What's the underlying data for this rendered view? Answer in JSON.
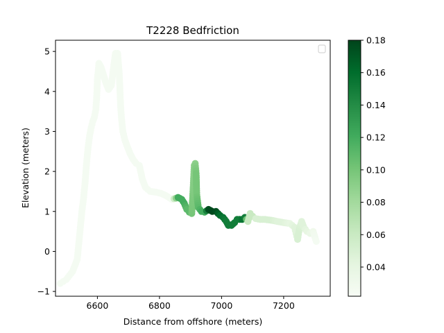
{
  "chart_data": {
    "type": "scatter",
    "title": "T2228 Bedfriction",
    "xlabel": "Distance from offshore (meters)",
    "ylabel": "Elevation (meters)",
    "xlim": [
      6465,
      7350
    ],
    "ylim": [
      -1.12,
      5.28
    ],
    "xticks": [
      6600,
      6800,
      7000,
      7200
    ],
    "yticks": [
      -1,
      0,
      1,
      2,
      3,
      4,
      5
    ],
    "grid": false,
    "legend": {
      "placement": "top-right",
      "entries": []
    },
    "colorbar": {
      "colormap": "Greens",
      "range": [
        0.022,
        0.18
      ],
      "ticks": [
        0.04,
        0.06,
        0.08,
        0.1,
        0.12,
        0.14,
        0.16,
        0.18
      ],
      "tick_labels": [
        "0.04",
        "0.06",
        "0.08",
        "0.10",
        "0.12",
        "0.14",
        "0.16",
        "0.18"
      ],
      "colors": {
        "low": "#f7fcf5",
        "mid": "#74c476",
        "high": "#00441b"
      }
    },
    "points": [
      {
        "x": 6480,
        "y": -0.8,
        "c": 0.025
      },
      {
        "x": 6490,
        "y": -0.75,
        "c": 0.025
      },
      {
        "x": 6500,
        "y": -0.7,
        "c": 0.025
      },
      {
        "x": 6510,
        "y": -0.6,
        "c": 0.025
      },
      {
        "x": 6520,
        "y": -0.5,
        "c": 0.025
      },
      {
        "x": 6530,
        "y": -0.3,
        "c": 0.025
      },
      {
        "x": 6535,
        "y": -0.2,
        "c": 0.025
      },
      {
        "x": 6540,
        "y": 0.2,
        "c": 0.025
      },
      {
        "x": 6545,
        "y": 0.6,
        "c": 0.025
      },
      {
        "x": 6550,
        "y": 1.0,
        "c": 0.025
      },
      {
        "x": 6555,
        "y": 1.3,
        "c": 0.025
      },
      {
        "x": 6560,
        "y": 1.7,
        "c": 0.025
      },
      {
        "x": 6565,
        "y": 2.2,
        "c": 0.025
      },
      {
        "x": 6570,
        "y": 2.6,
        "c": 0.025
      },
      {
        "x": 6575,
        "y": 2.9,
        "c": 0.025
      },
      {
        "x": 6580,
        "y": 3.1,
        "c": 0.025
      },
      {
        "x": 6585,
        "y": 3.25,
        "c": 0.025
      },
      {
        "x": 6590,
        "y": 3.35,
        "c": 0.025
      },
      {
        "x": 6595,
        "y": 3.55,
        "c": 0.025
      },
      {
        "x": 6598,
        "y": 3.9,
        "c": 0.025
      },
      {
        "x": 6600,
        "y": 4.3,
        "c": 0.025
      },
      {
        "x": 6605,
        "y": 4.7,
        "c": 0.025
      },
      {
        "x": 6612,
        "y": 4.6,
        "c": 0.025
      },
      {
        "x": 6620,
        "y": 4.4,
        "c": 0.025
      },
      {
        "x": 6628,
        "y": 4.2,
        "c": 0.025
      },
      {
        "x": 6636,
        "y": 4.05,
        "c": 0.025
      },
      {
        "x": 6645,
        "y": 4.15,
        "c": 0.025
      },
      {
        "x": 6652,
        "y": 4.6,
        "c": 0.025
      },
      {
        "x": 6658,
        "y": 4.95,
        "c": 0.025
      },
      {
        "x": 6665,
        "y": 4.95,
        "c": 0.025
      },
      {
        "x": 6670,
        "y": 4.5,
        "c": 0.025
      },
      {
        "x": 6675,
        "y": 3.6,
        "c": 0.025
      },
      {
        "x": 6678,
        "y": 3.3,
        "c": 0.025
      },
      {
        "x": 6682,
        "y": 3.0,
        "c": 0.025
      },
      {
        "x": 6688,
        "y": 2.8,
        "c": 0.025
      },
      {
        "x": 6695,
        "y": 2.65,
        "c": 0.025
      },
      {
        "x": 6705,
        "y": 2.45,
        "c": 0.025
      },
      {
        "x": 6715,
        "y": 2.3,
        "c": 0.025
      },
      {
        "x": 6725,
        "y": 2.2,
        "c": 0.025
      },
      {
        "x": 6735,
        "y": 2.15,
        "c": 0.025
      },
      {
        "x": 6745,
        "y": 1.8,
        "c": 0.025
      },
      {
        "x": 6755,
        "y": 1.6,
        "c": 0.025
      },
      {
        "x": 6770,
        "y": 1.5,
        "c": 0.025
      },
      {
        "x": 6790,
        "y": 1.48,
        "c": 0.025
      },
      {
        "x": 6805,
        "y": 1.45,
        "c": 0.025
      },
      {
        "x": 6820,
        "y": 1.4,
        "c": 0.025
      },
      {
        "x": 6840,
        "y": 1.3,
        "c": 0.025
      },
      {
        "x": 6860,
        "y": 1.35,
        "c": 0.12
      },
      {
        "x": 6872,
        "y": 1.3,
        "c": 0.12
      },
      {
        "x": 6880,
        "y": 1.2,
        "c": 0.12
      },
      {
        "x": 6888,
        "y": 1.05,
        "c": 0.11
      },
      {
        "x": 6896,
        "y": 0.98,
        "c": 0.11
      },
      {
        "x": 6904,
        "y": 0.95,
        "c": 0.1
      },
      {
        "x": 6908,
        "y": 1.5,
        "c": 0.095
      },
      {
        "x": 6912,
        "y": 2.15,
        "c": 0.09
      },
      {
        "x": 6915,
        "y": 2.2,
        "c": 0.09
      },
      {
        "x": 6918,
        "y": 1.95,
        "c": 0.1
      },
      {
        "x": 6920,
        "y": 1.42,
        "c": 0.1
      },
      {
        "x": 6925,
        "y": 1.1,
        "c": 0.11
      },
      {
        "x": 6935,
        "y": 1.0,
        "c": 0.12
      },
      {
        "x": 6945,
        "y": 0.98,
        "c": 0.12
      },
      {
        "x": 6958,
        "y": 1.05,
        "c": 0.175
      },
      {
        "x": 6970,
        "y": 1.0,
        "c": 0.178
      },
      {
        "x": 6982,
        "y": 1.0,
        "c": 0.175
      },
      {
        "x": 6995,
        "y": 0.9,
        "c": 0.16
      },
      {
        "x": 7005,
        "y": 0.85,
        "c": 0.155
      },
      {
        "x": 7015,
        "y": 0.75,
        "c": 0.15
      },
      {
        "x": 7022,
        "y": 0.65,
        "c": 0.15
      },
      {
        "x": 7032,
        "y": 0.65,
        "c": 0.15
      },
      {
        "x": 7042,
        "y": 0.72,
        "c": 0.15
      },
      {
        "x": 7050,
        "y": 0.8,
        "c": 0.15
      },
      {
        "x": 7058,
        "y": 0.8,
        "c": 0.15
      },
      {
        "x": 7066,
        "y": 0.8,
        "c": 0.155
      },
      {
        "x": 7075,
        "y": 0.85,
        "c": 0.15
      },
      {
        "x": 7085,
        "y": 0.75,
        "c": 0.06
      },
      {
        "x": 7092,
        "y": 0.95,
        "c": 0.06
      },
      {
        "x": 7100,
        "y": 0.88,
        "c": 0.06
      },
      {
        "x": 7110,
        "y": 0.82,
        "c": 0.05
      },
      {
        "x": 7125,
        "y": 0.8,
        "c": 0.05
      },
      {
        "x": 7140,
        "y": 0.8,
        "c": 0.05
      },
      {
        "x": 7160,
        "y": 0.78,
        "c": 0.05
      },
      {
        "x": 7180,
        "y": 0.75,
        "c": 0.045
      },
      {
        "x": 7200,
        "y": 0.72,
        "c": 0.045
      },
      {
        "x": 7220,
        "y": 0.7,
        "c": 0.04
      },
      {
        "x": 7235,
        "y": 0.6,
        "c": 0.045
      },
      {
        "x": 7240,
        "y": 0.45,
        "c": 0.045
      },
      {
        "x": 7245,
        "y": 0.3,
        "c": 0.05
      },
      {
        "x": 7250,
        "y": 0.55,
        "c": 0.05
      },
      {
        "x": 7258,
        "y": 0.75,
        "c": 0.045
      },
      {
        "x": 7265,
        "y": 0.6,
        "c": 0.045
      },
      {
        "x": 7275,
        "y": 0.5,
        "c": 0.04
      },
      {
        "x": 7285,
        "y": 0.45,
        "c": 0.035
      },
      {
        "x": 7295,
        "y": 0.5,
        "c": 0.03
      },
      {
        "x": 7305,
        "y": 0.25,
        "c": 0.025
      }
    ]
  }
}
